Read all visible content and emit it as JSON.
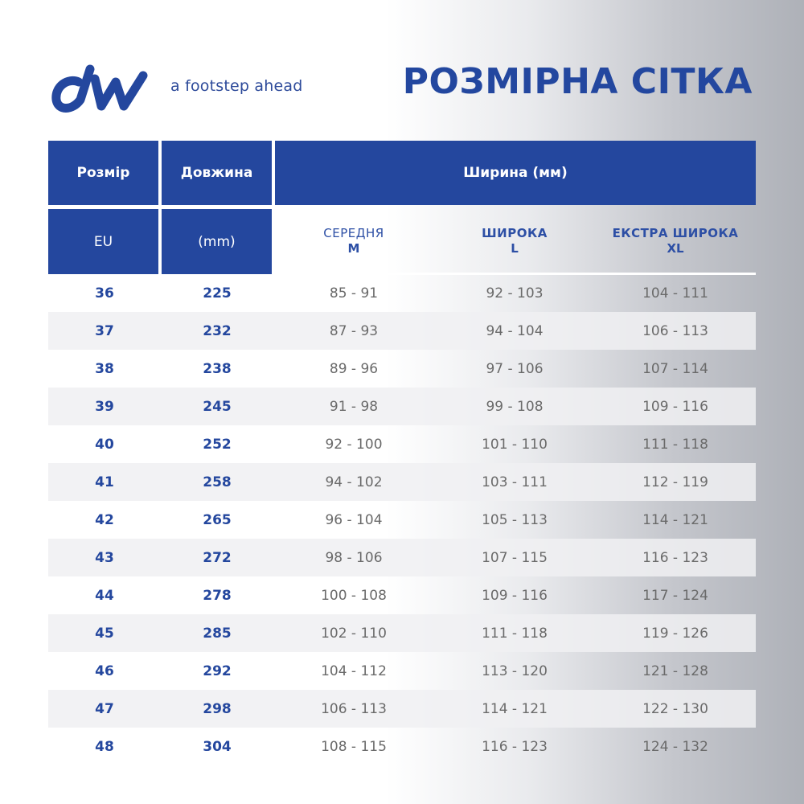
{
  "brand": {
    "logo_text": "dw",
    "tagline": "a footstep ahead",
    "colors": {
      "primary": "#24479e",
      "text_gray": "#6a6a6a"
    }
  },
  "title": "РОЗМІРНА СІТКА",
  "table": {
    "header": {
      "size": "Розмір",
      "length": "Довжина",
      "width": "Ширина (мм)",
      "eu": "EU",
      "mm": "(mm)"
    },
    "subheaders": [
      {
        "line1": "СЕРЕДНЯ",
        "line2": "M"
      },
      {
        "line1": "ШИРОКА",
        "line2": "L"
      },
      {
        "line1": "ЕКСТРА ШИРОКА",
        "line2": "XL"
      }
    ],
    "rows": [
      {
        "eu": "36",
        "len": "225",
        "m": "85 - 91",
        "l": "92 - 103",
        "xl": "104 - 111"
      },
      {
        "eu": "37",
        "len": "232",
        "m": "87 - 93",
        "l": "94 - 104",
        "xl": "106 - 113"
      },
      {
        "eu": "38",
        "len": "238",
        "m": "89 - 96",
        "l": "97 - 106",
        "xl": "107 - 114"
      },
      {
        "eu": "39",
        "len": "245",
        "m": "91 - 98",
        "l": "99 - 108",
        "xl": "109 - 116"
      },
      {
        "eu": "40",
        "len": "252",
        "m": "92 - 100",
        "l": "101 - 110",
        "xl": "111 - 118"
      },
      {
        "eu": "41",
        "len": "258",
        "m": "94 - 102",
        "l": "103 - 111",
        "xl": "112 - 119"
      },
      {
        "eu": "42",
        "len": "265",
        "m": "96 - 104",
        "l": "105 - 113",
        "xl": "114 - 121"
      },
      {
        "eu": "43",
        "len": "272",
        "m": "98 - 106",
        "l": "107 - 115",
        "xl": "116 - 123"
      },
      {
        "eu": "44",
        "len": "278",
        "m": "100 - 108",
        "l": "109 - 116",
        "xl": "117 - 124"
      },
      {
        "eu": "45",
        "len": "285",
        "m": "102 - 110",
        "l": "111 - 118",
        "xl": "119 - 126"
      },
      {
        "eu": "46",
        "len": "292",
        "m": "104 - 112",
        "l": "113 - 120",
        "xl": "121 - 128"
      },
      {
        "eu": "47",
        "len": "298",
        "m": "106 - 113",
        "l": "114 - 121",
        "xl": "122 - 130"
      },
      {
        "eu": "48",
        "len": "304",
        "m": "108 - 115",
        "l": "116 - 123",
        "xl": "124 - 132"
      }
    ]
  }
}
